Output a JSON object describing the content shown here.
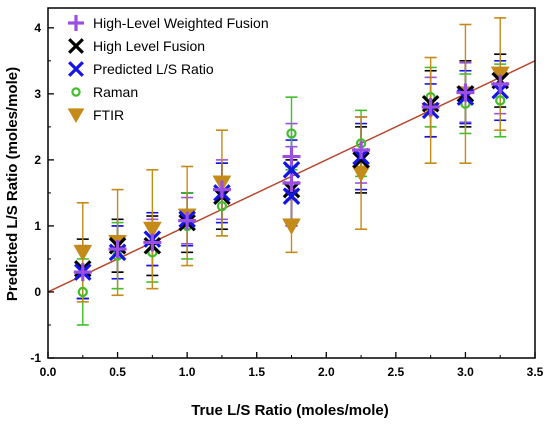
{
  "chart_data": {
    "type": "scatter",
    "xlabel": "True L/S Ratio (moles/mole)",
    "ylabel": "Predicted L/S Ratio (moles/mole)",
    "xlim": [
      0.0,
      3.5
    ],
    "ylim": [
      -1,
      4.3
    ],
    "xticks": [
      "0.0",
      "0.5",
      "1.0",
      "1.5",
      "2.0",
      "2.5",
      "3.0",
      "3.5"
    ],
    "yticks": [
      "-1",
      "0",
      "1",
      "2",
      "3",
      "4"
    ],
    "grid": false,
    "legend_position": "top-left",
    "reference_line": {
      "slope": 1,
      "intercept": 0,
      "color": "#b5482e"
    },
    "series": [
      {
        "name": "High-Level Weighted Fusion",
        "marker": "plus",
        "color": "#9b4fe0",
        "points": [
          {
            "x": 0.25,
            "y": 0.3,
            "err": 0.4
          },
          {
            "x": 0.5,
            "y": 0.65,
            "err": 0.35
          },
          {
            "x": 0.75,
            "y": 0.75,
            "err": 0.35
          },
          {
            "x": 1.0,
            "y": 1.08,
            "err": 0.35
          },
          {
            "x": 1.25,
            "y": 1.55,
            "err": 0.45
          },
          {
            "x": 1.75,
            "y": 1.65,
            "err": 0.55
          },
          {
            "x": 1.75,
            "y": 2.05,
            "err": 0.5
          },
          {
            "x": 2.25,
            "y": 2.15,
            "err": 0.5
          },
          {
            "x": 2.75,
            "y": 2.8,
            "err": 0.45
          },
          {
            "x": 3.0,
            "y": 3.02,
            "err": 0.45
          },
          {
            "x": 3.25,
            "y": 3.15,
            "err": 0.45
          }
        ]
      },
      {
        "name": "High Level Fusion",
        "marker": "cross",
        "color": "#000000",
        "points": [
          {
            "x": 0.25,
            "y": 0.35,
            "err": 0.45
          },
          {
            "x": 0.5,
            "y": 0.7,
            "err": 0.4
          },
          {
            "x": 0.75,
            "y": 0.7,
            "err": 0.45
          },
          {
            "x": 1.0,
            "y": 1.05,
            "err": 0.45
          },
          {
            "x": 1.25,
            "y": 1.45,
            "err": 0.5
          },
          {
            "x": 1.75,
            "y": 1.55,
            "err": 0.45
          },
          {
            "x": 2.25,
            "y": 2.0,
            "err": 0.5
          },
          {
            "x": 2.75,
            "y": 2.85,
            "err": 0.5
          },
          {
            "x": 3.0,
            "y": 3.0,
            "err": 0.5
          },
          {
            "x": 3.25,
            "y": 3.2,
            "err": 0.4
          }
        ]
      },
      {
        "name": "Predicted L/S Ratio",
        "marker": "cross",
        "color": "#1414e6",
        "points": [
          {
            "x": 0.25,
            "y": 0.3,
            "err": 0.4
          },
          {
            "x": 0.5,
            "y": 0.6,
            "err": 0.4
          },
          {
            "x": 0.75,
            "y": 0.8,
            "err": 0.4
          },
          {
            "x": 1.0,
            "y": 1.1,
            "err": 0.4
          },
          {
            "x": 1.25,
            "y": 1.5,
            "err": 0.45
          },
          {
            "x": 1.75,
            "y": 1.45,
            "err": 0.45
          },
          {
            "x": 1.75,
            "y": 1.85,
            "err": 0.45
          },
          {
            "x": 2.25,
            "y": 2.05,
            "err": 0.5
          },
          {
            "x": 2.75,
            "y": 2.75,
            "err": 0.4
          },
          {
            "x": 3.0,
            "y": 2.95,
            "err": 0.4
          },
          {
            "x": 3.25,
            "y": 3.05,
            "err": 0.45
          }
        ]
      },
      {
        "name": "Raman",
        "marker": "circle",
        "color": "#3fbf2a",
        "points": [
          {
            "x": 0.25,
            "y": 0.0,
            "err": 0.5
          },
          {
            "x": 0.5,
            "y": 0.55,
            "err": 0.5
          },
          {
            "x": 0.75,
            "y": 0.6,
            "err": 0.45
          },
          {
            "x": 1.0,
            "y": 1.0,
            "err": 0.5
          },
          {
            "x": 1.25,
            "y": 1.3,
            "err": 0.45
          },
          {
            "x": 1.75,
            "y": 2.4,
            "err": 0.55
          },
          {
            "x": 2.25,
            "y": 2.25,
            "err": 0.5
          },
          {
            "x": 2.75,
            "y": 2.95,
            "err": 0.45
          },
          {
            "x": 3.0,
            "y": 2.85,
            "err": 0.45
          },
          {
            "x": 3.25,
            "y": 2.9,
            "err": 0.55
          }
        ]
      },
      {
        "name": "FTIR",
        "marker": "triangle-down",
        "color": "#c48a1a",
        "points": [
          {
            "x": 0.25,
            "y": 0.6,
            "err": 0.75
          },
          {
            "x": 0.5,
            "y": 0.75,
            "err": 0.8
          },
          {
            "x": 0.75,
            "y": 0.95,
            "err": 0.9
          },
          {
            "x": 1.0,
            "y": 1.15,
            "err": 0.75
          },
          {
            "x": 1.25,
            "y": 1.65,
            "err": 0.8
          },
          {
            "x": 1.75,
            "y": 1.0,
            "err": 0.4
          },
          {
            "x": 2.25,
            "y": 1.8,
            "err": 0.85
          },
          {
            "x": 2.75,
            "y": 2.75,
            "err": 0.8
          },
          {
            "x": 3.0,
            "y": 3.0,
            "err": 1.05
          },
          {
            "x": 3.25,
            "y": 3.3,
            "err": 0.85
          }
        ]
      }
    ]
  }
}
